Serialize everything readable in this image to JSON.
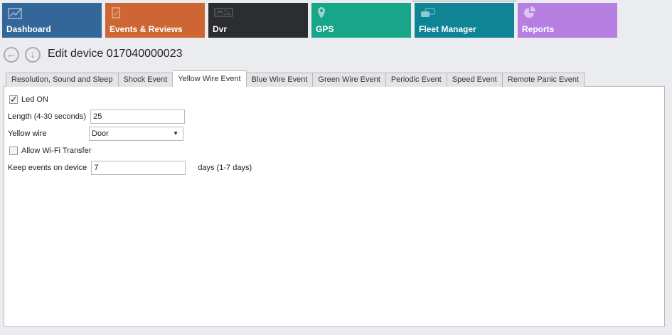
{
  "tiles": [
    {
      "label": "Dashboard",
      "color": "#346799",
      "icon": "chart-trend-icon"
    },
    {
      "label": "Events & Reviews",
      "color": "#CD6633",
      "icon": "clipboard-check-icon"
    },
    {
      "label": "Dvr",
      "color": "#2B2D31",
      "icon": "merge-logo-icon"
    },
    {
      "label": "GPS",
      "color": "#19A688",
      "icon": "map-pin-icon"
    },
    {
      "label": "Fleet Manager",
      "color": "#0E8495",
      "icon": "cars-icon"
    },
    {
      "label": "Reports",
      "color": "#B77FE2",
      "icon": "pie-chart-icon"
    }
  ],
  "header": {
    "title": "Edit device 017040000023"
  },
  "tabs": [
    "Resolution, Sound and Sleep",
    "Shock Event",
    "Yellow Wire Event",
    "Blue Wire Event",
    "Green Wire Event",
    "Periodic Event",
    "Speed Event",
    "Remote Panic Event"
  ],
  "active_tab": "Yellow Wire Event",
  "form": {
    "led_on": {
      "label": "Led ON",
      "checked": true
    },
    "length": {
      "label": "Length (4-30 seconds)",
      "value": "25"
    },
    "yellow_wire": {
      "label": "Yellow wire",
      "value": "Door"
    },
    "wifi": {
      "label": "Allow Wi-Fi Transfer",
      "checked": false
    },
    "keep": {
      "label": "Keep events on device",
      "value": "7",
      "suffix": "days (1-7 days)"
    }
  }
}
